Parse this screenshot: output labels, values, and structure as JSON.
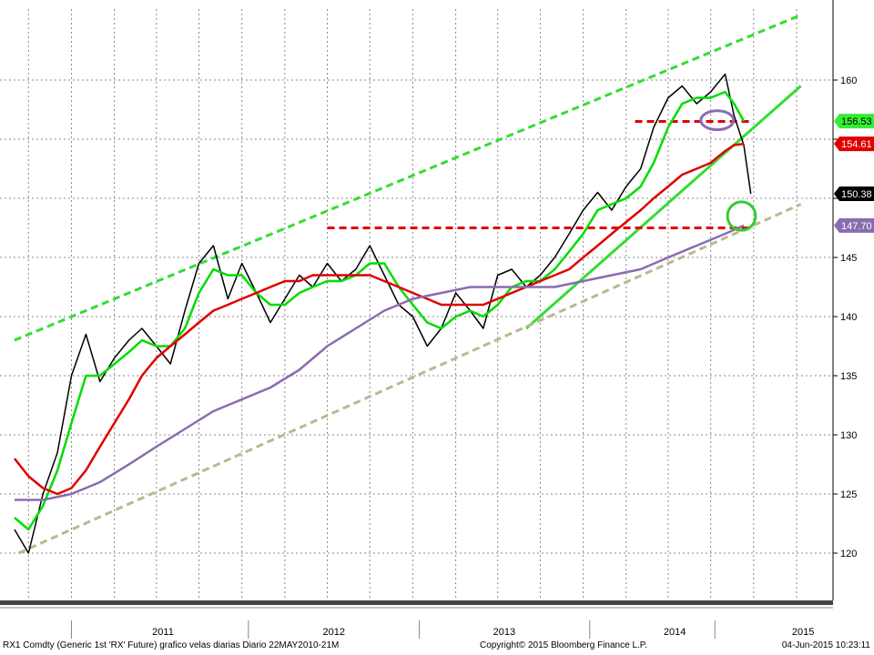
{
  "chart_data": {
    "type": "candlestick",
    "instrument": "RX1 Comdty",
    "ylim": [
      116,
      166
    ],
    "y_ticks": [
      120,
      125,
      130,
      135,
      140,
      145,
      150,
      155,
      160
    ],
    "y_tick_labels": [
      "120",
      "125",
      "130",
      "135",
      "140",
      "145",
      "",
      "",
      "160"
    ],
    "x_tick_labels": [
      "2011",
      "2012",
      "2013",
      "2014",
      "2015"
    ],
    "grid": true,
    "series": [
      {
        "name": "",
        "kind": "price",
        "color": "#000000",
        "points": [
          [
            "2010-06-01",
            122.0
          ],
          [
            "2010-07-01",
            120.0
          ],
          [
            "2010-08-01",
            125.0
          ],
          [
            "2010-09-01",
            128.5
          ],
          [
            "2010-10-01",
            135.0
          ],
          [
            "2010-11-01",
            138.5
          ],
          [
            "2010-12-01",
            134.5
          ],
          [
            "2011-01-01",
            136.5
          ],
          [
            "2011-02-01",
            138.0
          ],
          [
            "2011-03-01",
            139.0
          ],
          [
            "2011-04-01",
            137.5
          ],
          [
            "2011-05-01",
            136.0
          ],
          [
            "2011-06-01",
            140.5
          ],
          [
            "2011-07-01",
            144.5
          ],
          [
            "2011-08-01",
            146.0
          ],
          [
            "2011-09-01",
            141.5
          ],
          [
            "2011-10-01",
            144.5
          ],
          [
            "2011-11-01",
            142.0
          ],
          [
            "2011-12-01",
            139.5
          ],
          [
            "2012-01-01",
            141.5
          ],
          [
            "2012-02-01",
            143.5
          ],
          [
            "2012-03-01",
            142.5
          ],
          [
            "2012-04-01",
            144.5
          ],
          [
            "2012-05-01",
            143.0
          ],
          [
            "2012-06-01",
            144.0
          ],
          [
            "2012-07-01",
            146.0
          ],
          [
            "2012-08-01",
            143.5
          ],
          [
            "2012-09-01",
            141.0
          ],
          [
            "2012-10-01",
            140.0
          ],
          [
            "2012-11-01",
            137.5
          ],
          [
            "2012-12-01",
            139.0
          ],
          [
            "2013-01-01",
            142.0
          ],
          [
            "2013-02-01",
            140.5
          ],
          [
            "2013-03-01",
            139.0
          ],
          [
            "2013-04-01",
            143.5
          ],
          [
            "2013-05-01",
            144.0
          ],
          [
            "2013-06-01",
            142.5
          ],
          [
            "2013-07-01",
            143.5
          ],
          [
            "2013-08-01",
            145.0
          ],
          [
            "2013-09-01",
            147.0
          ],
          [
            "2013-10-01",
            149.0
          ],
          [
            "2013-11-01",
            150.5
          ],
          [
            "2013-12-01",
            149.0
          ],
          [
            "2014-01-01",
            151.0
          ],
          [
            "2014-02-01",
            152.5
          ],
          [
            "2014-03-01",
            156.0
          ],
          [
            "2014-04-01",
            158.5
          ],
          [
            "2014-05-01",
            159.5
          ],
          [
            "2014-06-01",
            158.0
          ],
          [
            "2014-07-01",
            159.0
          ],
          [
            "2014-08-01",
            160.5
          ],
          [
            "2014-08-20",
            157.0
          ],
          [
            "2014-09-10",
            154.5
          ],
          [
            "2014-09-25",
            150.38
          ]
        ]
      },
      {
        "name": "",
        "kind": "moving-average",
        "color": "#00dd00",
        "last": 156.53,
        "points": [
          [
            "2010-06-01",
            123.0
          ],
          [
            "2010-07-01",
            122.0
          ],
          [
            "2010-08-01",
            124.0
          ],
          [
            "2010-09-01",
            127.0
          ],
          [
            "2010-10-01",
            131.0
          ],
          [
            "2010-11-01",
            135.0
          ],
          [
            "2010-12-01",
            135.0
          ],
          [
            "2011-01-01",
            136.0
          ],
          [
            "2011-02-01",
            137.0
          ],
          [
            "2011-03-01",
            138.0
          ],
          [
            "2011-04-01",
            137.5
          ],
          [
            "2011-05-01",
            137.5
          ],
          [
            "2011-06-01",
            139.0
          ],
          [
            "2011-07-01",
            142.0
          ],
          [
            "2011-08-01",
            144.0
          ],
          [
            "2011-09-01",
            143.5
          ],
          [
            "2011-10-01",
            143.5
          ],
          [
            "2011-11-01",
            142.0
          ],
          [
            "2011-12-01",
            141.0
          ],
          [
            "2012-01-01",
            141.0
          ],
          [
            "2012-02-01",
            142.0
          ],
          [
            "2012-03-01",
            142.5
          ],
          [
            "2012-04-01",
            143.0
          ],
          [
            "2012-05-01",
            143.0
          ],
          [
            "2012-06-01",
            143.5
          ],
          [
            "2012-07-01",
            144.5
          ],
          [
            "2012-08-01",
            144.5
          ],
          [
            "2012-09-01",
            142.5
          ],
          [
            "2012-10-01",
            141.0
          ],
          [
            "2012-11-01",
            139.5
          ],
          [
            "2012-12-01",
            139.0
          ],
          [
            "2013-01-01",
            140.0
          ],
          [
            "2013-02-01",
            140.5
          ],
          [
            "2013-03-01",
            140.0
          ],
          [
            "2013-04-01",
            141.0
          ],
          [
            "2013-05-01",
            142.5
          ],
          [
            "2013-06-01",
            143.0
          ],
          [
            "2013-07-01",
            143.0
          ],
          [
            "2013-08-01",
            144.0
          ],
          [
            "2013-09-01",
            145.5
          ],
          [
            "2013-10-01",
            147.0
          ],
          [
            "2013-11-01",
            149.0
          ],
          [
            "2013-12-01",
            149.5
          ],
          [
            "2014-01-01",
            150.0
          ],
          [
            "2014-02-01",
            151.0
          ],
          [
            "2014-03-01",
            153.0
          ],
          [
            "2014-04-01",
            156.0
          ],
          [
            "2014-05-01",
            158.0
          ],
          [
            "2014-06-01",
            158.5
          ],
          [
            "2014-07-01",
            158.5
          ],
          [
            "2014-08-01",
            159.0
          ],
          [
            "2014-08-20",
            158.0
          ],
          [
            "2014-09-10",
            156.53
          ]
        ]
      },
      {
        "name": "",
        "kind": "moving-average",
        "color": "#e00000",
        "last": 154.61,
        "points": [
          [
            "2010-06-01",
            128.0
          ],
          [
            "2010-07-01",
            126.5
          ],
          [
            "2010-08-01",
            125.5
          ],
          [
            "2010-09-01",
            125.0
          ],
          [
            "2010-10-01",
            125.5
          ],
          [
            "2010-11-01",
            127.0
          ],
          [
            "2010-12-01",
            129.0
          ],
          [
            "2011-01-01",
            131.0
          ],
          [
            "2011-02-01",
            133.0
          ],
          [
            "2011-03-01",
            135.0
          ],
          [
            "2011-04-01",
            136.5
          ],
          [
            "2011-05-01",
            137.5
          ],
          [
            "2011-06-01",
            138.5
          ],
          [
            "2011-07-01",
            139.5
          ],
          [
            "2011-08-01",
            140.5
          ],
          [
            "2011-09-01",
            141.0
          ],
          [
            "2011-10-01",
            141.5
          ],
          [
            "2011-11-01",
            142.0
          ],
          [
            "2011-12-01",
            142.5
          ],
          [
            "2012-01-01",
            143.0
          ],
          [
            "2012-02-01",
            143.0
          ],
          [
            "2012-03-01",
            143.5
          ],
          [
            "2012-04-01",
            143.5
          ],
          [
            "2012-05-01",
            143.5
          ],
          [
            "2012-06-01",
            143.5
          ],
          [
            "2012-07-01",
            143.5
          ],
          [
            "2012-08-01",
            143.0
          ],
          [
            "2012-09-01",
            142.5
          ],
          [
            "2012-10-01",
            142.0
          ],
          [
            "2012-11-01",
            141.5
          ],
          [
            "2012-12-01",
            141.0
          ],
          [
            "2013-01-01",
            141.0
          ],
          [
            "2013-02-01",
            141.0
          ],
          [
            "2013-03-01",
            141.0
          ],
          [
            "2013-04-01",
            141.5
          ],
          [
            "2013-05-01",
            142.0
          ],
          [
            "2013-06-01",
            142.5
          ],
          [
            "2013-07-01",
            143.0
          ],
          [
            "2013-08-01",
            143.5
          ],
          [
            "2013-09-01",
            144.0
          ],
          [
            "2013-10-01",
            145.0
          ],
          [
            "2013-11-01",
            146.0
          ],
          [
            "2013-12-01",
            147.0
          ],
          [
            "2014-01-01",
            148.0
          ],
          [
            "2014-02-01",
            149.0
          ],
          [
            "2014-03-01",
            150.0
          ],
          [
            "2014-04-01",
            151.0
          ],
          [
            "2014-05-01",
            152.0
          ],
          [
            "2014-06-01",
            152.5
          ],
          [
            "2014-07-01",
            153.0
          ],
          [
            "2014-08-01",
            154.0
          ],
          [
            "2014-08-20",
            154.5
          ],
          [
            "2014-09-10",
            154.61
          ]
        ]
      },
      {
        "name": "",
        "kind": "moving-average",
        "color": "#8a6cb0",
        "last": 147.7,
        "points": [
          [
            "2010-06-01",
            124.5
          ],
          [
            "2010-08-01",
            124.5
          ],
          [
            "2010-10-01",
            125.0
          ],
          [
            "2010-12-01",
            126.0
          ],
          [
            "2011-02-01",
            127.5
          ],
          [
            "2011-04-01",
            129.0
          ],
          [
            "2011-06-01",
            130.5
          ],
          [
            "2011-08-01",
            132.0
          ],
          [
            "2011-10-01",
            133.0
          ],
          [
            "2011-12-01",
            134.0
          ],
          [
            "2012-02-01",
            135.5
          ],
          [
            "2012-04-01",
            137.5
          ],
          [
            "2012-06-01",
            139.0
          ],
          [
            "2012-08-01",
            140.5
          ],
          [
            "2012-10-01",
            141.5
          ],
          [
            "2012-12-01",
            142.0
          ],
          [
            "2013-02-01",
            142.5
          ],
          [
            "2013-04-01",
            142.5
          ],
          [
            "2013-06-01",
            142.5
          ],
          [
            "2013-08-01",
            142.5
          ],
          [
            "2013-10-01",
            143.0
          ],
          [
            "2013-12-01",
            143.5
          ],
          [
            "2014-02-01",
            144.0
          ],
          [
            "2014-04-01",
            145.0
          ],
          [
            "2014-06-01",
            146.0
          ],
          [
            "2014-08-01",
            147.0
          ],
          [
            "2014-09-10",
            147.7
          ]
        ]
      }
    ],
    "annotations": {
      "lines": [
        {
          "kind": "channel-top",
          "color": "#33dd33",
          "dash": true,
          "p1": [
            "2010-06-01",
            138.0
          ],
          "p2": [
            "2015-01-10",
            165.5
          ]
        },
        {
          "kind": "trend",
          "color": "#33dd33",
          "dash": false,
          "p1": [
            "2013-06-01",
            139.0
          ],
          "p2": [
            "2015-01-10",
            159.5
          ]
        },
        {
          "kind": "channel-bottom",
          "color": "#bab891",
          "dash": true,
          "p1": [
            "2010-06-10",
            120.0
          ],
          "p2": [
            "2015-01-10",
            149.5
          ]
        },
        {
          "kind": "resistance",
          "color": "#e00000",
          "dash": true,
          "p1": [
            "2014-01-20",
            156.5
          ],
          "p2": [
            "2014-09-25",
            156.5
          ]
        },
        {
          "kind": "support",
          "color": "#e00000",
          "dash": true,
          "p1": [
            "2012-04-01",
            147.5
          ],
          "p2": [
            "2014-09-25",
            147.5
          ]
        }
      ],
      "ellipses": [
        {
          "color": "#8a6cb0",
          "center": [
            "2014-07-15",
            156.6
          ],
          "rx_days": 35,
          "ry_value": 0.8
        },
        {
          "color": "#33cc33",
          "center": [
            "2014-09-05",
            148.5
          ],
          "rx_days": 30,
          "ry_value": 1.2
        }
      ]
    },
    "last_value_tags": [
      {
        "label": "156.53",
        "value": 156.53,
        "bg": "#33ee33",
        "fg": "#000000"
      },
      {
        "label": "154.61",
        "value": 154.61,
        "bg": "#e00000",
        "fg": "#ffffff"
      },
      {
        "label": "150.38",
        "value": 150.38,
        "bg": "#000000",
        "fg": "#ffffff"
      },
      {
        "label": "147.70",
        "value": 147.7,
        "bg": "#8a6cb0",
        "fg": "#ffffff"
      }
    ]
  },
  "footer": {
    "left": "RX1 Comdty (Generic 1st 'RX' Future) grafico velas diarias  Diario 22MAY2010-21M",
    "center": "Copyright© 2015 Bloomberg Finance L.P.",
    "right": "04-Jun-2015 10:23:11"
  }
}
